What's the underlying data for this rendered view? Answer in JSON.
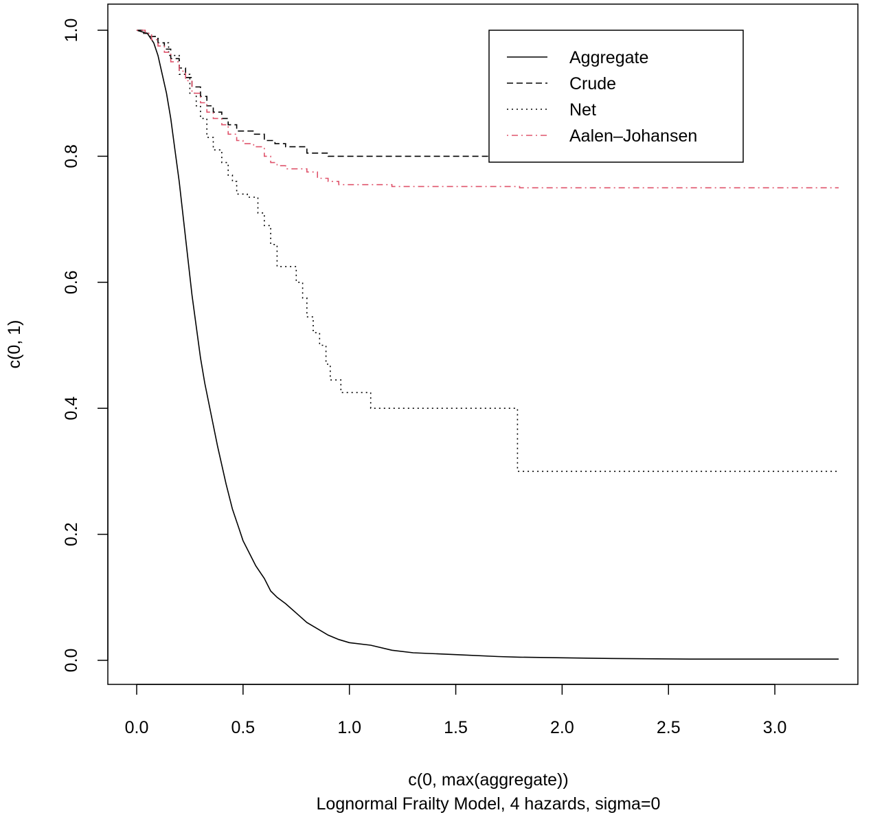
{
  "chart_data": {
    "type": "line",
    "title": "",
    "xlabel": "c(0, max(aggregate))",
    "xlabel_sub": "Lognormal Frailty Model, 4 hazards, sigma=0",
    "ylabel": "c(0, 1)",
    "xlim": [
      0,
      3.3
    ],
    "ylim": [
      0,
      1
    ],
    "xticks": [
      "0.0",
      "0.5",
      "1.0",
      "1.5",
      "2.0",
      "2.5",
      "3.0"
    ],
    "xtick_values": [
      0,
      0.5,
      1,
      1.5,
      2,
      2.5,
      3
    ],
    "yticks": [
      "0.0",
      "0.2",
      "0.4",
      "0.6",
      "0.8",
      "1.0"
    ],
    "ytick_values": [
      0,
      0.2,
      0.4,
      0.6,
      0.8,
      1
    ],
    "grid": false,
    "legend_position": "top-right",
    "series": [
      {
        "name": "Aggregate",
        "color": "#000000",
        "style": "solid",
        "step": false,
        "x": [
          0,
          0.05,
          0.08,
          0.1,
          0.12,
          0.14,
          0.16,
          0.18,
          0.2,
          0.22,
          0.24,
          0.26,
          0.28,
          0.3,
          0.32,
          0.35,
          0.38,
          0.4,
          0.42,
          0.45,
          0.48,
          0.5,
          0.53,
          0.56,
          0.6,
          0.63,
          0.66,
          0.7,
          0.75,
          0.8,
          0.85,
          0.9,
          0.95,
          1.0,
          1.1,
          1.2,
          1.3,
          1.5,
          1.7,
          1.8,
          2.0,
          2.2,
          2.6,
          3.3
        ],
        "y": [
          1.0,
          0.995,
          0.98,
          0.96,
          0.93,
          0.9,
          0.86,
          0.81,
          0.76,
          0.7,
          0.64,
          0.58,
          0.53,
          0.48,
          0.44,
          0.39,
          0.34,
          0.31,
          0.28,
          0.24,
          0.21,
          0.19,
          0.17,
          0.15,
          0.13,
          0.11,
          0.1,
          0.09,
          0.075,
          0.06,
          0.05,
          0.04,
          0.033,
          0.028,
          0.024,
          0.016,
          0.012,
          0.009,
          0.006,
          0.005,
          0.004,
          0.003,
          0.002,
          0.002
        ]
      },
      {
        "name": "Crude",
        "color": "#000000",
        "style": "dashed",
        "step": true,
        "x": [
          0,
          0.04,
          0.07,
          0.1,
          0.13,
          0.16,
          0.2,
          0.23,
          0.26,
          0.3,
          0.33,
          0.36,
          0.4,
          0.43,
          0.47,
          0.5,
          0.55,
          0.6,
          0.65,
          0.7,
          0.8,
          0.9,
          0.95,
          1.2,
          1.79
        ],
        "y": [
          1.0,
          0.995,
          0.99,
          0.98,
          0.97,
          0.955,
          0.94,
          0.925,
          0.91,
          0.895,
          0.88,
          0.87,
          0.86,
          0.85,
          0.84,
          0.84,
          0.835,
          0.825,
          0.82,
          0.815,
          0.805,
          0.8,
          0.8,
          0.8,
          0.8
        ]
      },
      {
        "name": "Net",
        "color": "#000000",
        "style": "dotted",
        "step": true,
        "x": [
          0,
          0.03,
          0.06,
          0.1,
          0.15,
          0.2,
          0.25,
          0.28,
          0.3,
          0.33,
          0.36,
          0.4,
          0.43,
          0.45,
          0.47,
          0.52,
          0.57,
          0.6,
          0.63,
          0.66,
          0.68,
          0.75,
          0.78,
          0.8,
          0.83,
          0.86,
          0.89,
          0.91,
          0.93,
          0.96,
          1.1,
          1.24,
          1.79,
          3.3
        ],
        "y": [
          1.0,
          0.995,
          0.99,
          0.98,
          0.96,
          0.93,
          0.9,
          0.88,
          0.86,
          0.83,
          0.81,
          0.79,
          0.77,
          0.76,
          0.74,
          0.735,
          0.71,
          0.69,
          0.66,
          0.625,
          0.625,
          0.6,
          0.575,
          0.545,
          0.52,
          0.5,
          0.47,
          0.445,
          0.445,
          0.425,
          0.4,
          0.4,
          0.3,
          0.3
        ]
      },
      {
        "name": "Aalen–Johansen",
        "color": "#df536b",
        "style": "dashdot",
        "step": true,
        "x": [
          0,
          0.04,
          0.07,
          0.1,
          0.13,
          0.16,
          0.2,
          0.23,
          0.26,
          0.3,
          0.33,
          0.36,
          0.4,
          0.43,
          0.47,
          0.5,
          0.55,
          0.6,
          0.63,
          0.66,
          0.7,
          0.8,
          0.85,
          0.9,
          0.95,
          1.0,
          1.2,
          1.8,
          3.3
        ],
        "y": [
          1.0,
          0.995,
          0.985,
          0.975,
          0.965,
          0.95,
          0.935,
          0.92,
          0.9,
          0.885,
          0.87,
          0.86,
          0.85,
          0.835,
          0.825,
          0.82,
          0.815,
          0.8,
          0.79,
          0.785,
          0.78,
          0.775,
          0.765,
          0.76,
          0.755,
          0.755,
          0.752,
          0.75,
          0.75
        ]
      }
    ]
  }
}
